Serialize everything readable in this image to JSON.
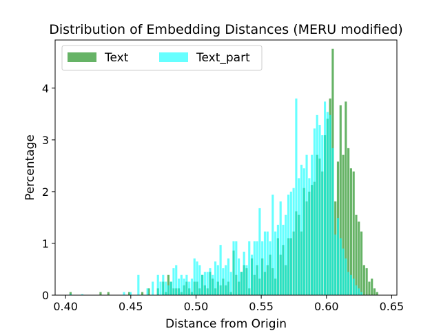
{
  "chart_data": {
    "type": "bar",
    "title": "Distribution of Embedding Distances (MERU modified)",
    "xlabel": "Distance from Origin",
    "ylabel": "Percentage",
    "xlim": [
      0.392,
      0.654
    ],
    "ylim": [
      0,
      4.93
    ],
    "xticks": [
      0.4,
      0.45,
      0.5,
      0.55,
      0.6,
      0.65
    ],
    "xtick_labels": [
      "0.40",
      "0.45",
      "0.50",
      "0.55",
      "0.60",
      "0.65"
    ],
    "yticks": [
      0,
      1,
      2,
      3,
      4
    ],
    "ytick_labels": [
      "0",
      "1",
      "2",
      "3",
      "4"
    ],
    "grid": false,
    "legend_position": "upper-left",
    "legend_columns": 2,
    "bin_width": 0.00166,
    "colors": {
      "Text": "#008000",
      "Text_part": "#00FFFF",
      "overlap": "#2AE0C6"
    },
    "series": [
      {
        "name": "Text",
        "color": "#008000",
        "alpha": 0.6,
        "bins": [
          [
            0.403,
            0.06
          ],
          [
            0.426,
            0.06
          ],
          [
            0.432,
            0.06
          ],
          [
            0.448,
            0.06
          ],
          [
            0.458,
            0.06
          ],
          [
            0.463,
            0.13
          ],
          [
            0.47,
            0.13
          ],
          [
            0.474,
            0.26
          ],
          [
            0.476,
            0.06
          ],
          [
            0.478,
            0.39
          ],
          [
            0.48,
            0.26
          ],
          [
            0.482,
            0.13
          ],
          [
            0.484,
            0.13
          ],
          [
            0.486,
            0.13
          ],
          [
            0.488,
            0.06
          ],
          [
            0.49,
            0.19
          ],
          [
            0.492,
            0.26
          ],
          [
            0.494,
            0.13
          ],
          [
            0.496,
            0.06
          ],
          [
            0.498,
            0.26
          ],
          [
            0.5,
            0.26
          ],
          [
            0.502,
            0.13
          ],
          [
            0.504,
            0.39
          ],
          [
            0.506,
            0.19
          ],
          [
            0.508,
            0.13
          ],
          [
            0.51,
            0.45
          ],
          [
            0.512,
            0.32
          ],
          [
            0.514,
            0.13
          ],
          [
            0.516,
            0.26
          ],
          [
            0.518,
            0.19
          ],
          [
            0.52,
            0.32
          ],
          [
            0.522,
            0.19
          ],
          [
            0.524,
            0.26
          ],
          [
            0.526,
            0.06
          ],
          [
            0.528,
            0.86
          ],
          [
            0.53,
            0.39
          ],
          [
            0.532,
            0.26
          ],
          [
            0.534,
            0.45
          ],
          [
            0.536,
            0.58
          ],
          [
            0.538,
            0.52
          ],
          [
            0.54,
            0.13
          ],
          [
            0.542,
            0.71
          ],
          [
            0.544,
            0.39
          ],
          [
            0.546,
            0.58
          ],
          [
            0.548,
            0.32
          ],
          [
            0.55,
            0.71
          ],
          [
            0.552,
            0.45
          ],
          [
            0.554,
            0.58
          ],
          [
            0.556,
            0.78
          ],
          [
            0.558,
            0.52
          ],
          [
            0.56,
            0.32
          ],
          [
            0.562,
            1.1
          ],
          [
            0.564,
            0.78
          ],
          [
            0.566,
            0.97
          ],
          [
            0.568,
            0.58
          ],
          [
            0.57,
            1.1
          ],
          [
            0.572,
            1.1
          ],
          [
            0.574,
            1.23
          ],
          [
            0.576,
            1.62
          ],
          [
            0.578,
            1.55
          ],
          [
            0.58,
            1.23
          ],
          [
            0.582,
            2.07
          ],
          [
            0.584,
            1.81
          ],
          [
            0.586,
            2.0
          ],
          [
            0.588,
            2.13
          ],
          [
            0.59,
            2.19
          ],
          [
            0.592,
            2.71
          ],
          [
            0.594,
            2.64
          ],
          [
            0.596,
            2.39
          ],
          [
            0.598,
            3.09
          ],
          [
            0.6,
            3.41
          ],
          [
            0.602,
            3.8
          ],
          [
            0.604,
            4.76
          ],
          [
            0.606,
            1.81
          ],
          [
            0.608,
            2.58
          ],
          [
            0.61,
            3.67
          ],
          [
            0.612,
            2.71
          ],
          [
            0.614,
            3.74
          ],
          [
            0.616,
            2.84
          ],
          [
            0.618,
            2.45
          ],
          [
            0.62,
            2.39
          ],
          [
            0.622,
            1.55
          ],
          [
            0.624,
            1.42
          ],
          [
            0.626,
            1.23
          ],
          [
            0.628,
            0.58
          ],
          [
            0.63,
            0.52
          ],
          [
            0.632,
            0.26
          ],
          [
            0.634,
            0.32
          ],
          [
            0.636,
            0.13
          ],
          [
            0.638,
            0.06
          ]
        ]
      },
      {
        "name": "Text_part",
        "color": "#00FFFF",
        "alpha": 0.6,
        "bins": [
          [
            0.403,
            0.02
          ],
          [
            0.412,
            0.02
          ],
          [
            0.444,
            0.06
          ],
          [
            0.449,
            0.06
          ],
          [
            0.455,
            0.39
          ],
          [
            0.462,
            0.13
          ],
          [
            0.466,
            0.26
          ],
          [
            0.47,
            0.39
          ],
          [
            0.472,
            0.26
          ],
          [
            0.474,
            0.39
          ],
          [
            0.476,
            0.26
          ],
          [
            0.478,
            0.19
          ],
          [
            0.48,
            0.26
          ],
          [
            0.482,
            0.52
          ],
          [
            0.484,
            0.58
          ],
          [
            0.486,
            0.32
          ],
          [
            0.488,
            0.39
          ],
          [
            0.49,
            0.32
          ],
          [
            0.492,
            0.39
          ],
          [
            0.494,
            0.26
          ],
          [
            0.496,
            0.32
          ],
          [
            0.498,
            0.71
          ],
          [
            0.5,
            0.65
          ],
          [
            0.502,
            0.58
          ],
          [
            0.504,
            0.39
          ],
          [
            0.506,
            0.45
          ],
          [
            0.508,
            0.45
          ],
          [
            0.51,
            0.52
          ],
          [
            0.512,
            0.39
          ],
          [
            0.514,
            0.65
          ],
          [
            0.516,
            0.58
          ],
          [
            0.518,
            0.97
          ],
          [
            0.52,
            0.52
          ],
          [
            0.522,
            0.58
          ],
          [
            0.524,
            0.71
          ],
          [
            0.526,
            0.45
          ],
          [
            0.528,
            1.04
          ],
          [
            0.53,
            1.04
          ],
          [
            0.532,
            0.71
          ],
          [
            0.534,
            0.45
          ],
          [
            0.536,
            0.84
          ],
          [
            0.538,
            0.58
          ],
          [
            0.54,
            1.04
          ],
          [
            0.542,
            0.78
          ],
          [
            0.544,
            1.04
          ],
          [
            0.546,
            1.04
          ],
          [
            0.548,
            1.68
          ],
          [
            0.55,
            1.04
          ],
          [
            0.552,
            1.23
          ],
          [
            0.554,
            1.23
          ],
          [
            0.556,
            1.04
          ],
          [
            0.558,
            1.94
          ],
          [
            0.56,
            1.23
          ],
          [
            0.562,
            1.36
          ],
          [
            0.564,
            1.81
          ],
          [
            0.566,
            1.36
          ],
          [
            0.568,
            1.55
          ],
          [
            0.57,
            1.94
          ],
          [
            0.572,
            2.0
          ],
          [
            0.574,
            2.07
          ],
          [
            0.576,
            3.8
          ],
          [
            0.578,
            2.26
          ],
          [
            0.58,
            2.52
          ],
          [
            0.582,
            2.45
          ],
          [
            0.584,
            2.71
          ],
          [
            0.586,
            2.26
          ],
          [
            0.588,
            2.71
          ],
          [
            0.59,
            3.22
          ],
          [
            0.592,
            3.48
          ],
          [
            0.594,
            3.29
          ],
          [
            0.596,
            3.09
          ],
          [
            0.598,
            3.74
          ],
          [
            0.6,
            3.54
          ],
          [
            0.602,
            3.48
          ],
          [
            0.604,
            2.84
          ],
          [
            0.606,
            1.17
          ],
          [
            0.608,
            1.49
          ],
          [
            0.61,
            1.1
          ],
          [
            0.612,
            0.9
          ],
          [
            0.614,
            0.71
          ],
          [
            0.616,
            0.45
          ],
          [
            0.618,
            0.39
          ],
          [
            0.62,
            0.32
          ],
          [
            0.622,
            0.19
          ],
          [
            0.624,
            0.13
          ],
          [
            0.626,
            0.06
          ]
        ]
      }
    ]
  }
}
